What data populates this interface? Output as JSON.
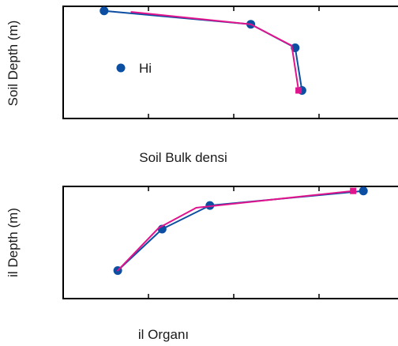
{
  "colors": {
    "observed": "#0b4ea2",
    "modeled": "#e0148c",
    "axis": "#000000"
  },
  "chart_data": [
    {
      "type": "line",
      "title": "",
      "xlabel": "Soil Bulk densi",
      "ylabel": "Soil Depth (m)",
      "grid": false,
      "legend": {
        "position": "left-middle",
        "entries": [
          {
            "label": "Hi",
            "series": "observed"
          }
        ]
      },
      "xlim": [
        0,
        1
      ],
      "ylim": [
        0,
        1
      ],
      "series": [
        {
          "key": "observed",
          "name": "Hi",
          "marker": "circle",
          "points": [
            {
              "x": 0.12,
              "y": 0.96
            },
            {
              "x": 0.55,
              "y": 0.84
            },
            {
              "x": 0.68,
              "y": 0.63
            },
            {
              "x": 0.7,
              "y": 0.25
            }
          ]
        },
        {
          "key": "modeled",
          "marker": "square-end",
          "points": [
            {
              "x": 0.2,
              "y": 0.95
            },
            {
              "x": 0.55,
              "y": 0.84
            },
            {
              "x": 0.67,
              "y": 0.65
            },
            {
              "x": 0.69,
              "y": 0.25
            }
          ]
        }
      ]
    },
    {
      "type": "line",
      "title": "",
      "xlabel": "il Organı",
      "ylabel": "il Depth (m)",
      "grid": false,
      "xlim": [
        0,
        1
      ],
      "ylim": [
        0,
        1
      ],
      "series": [
        {
          "key": "observed",
          "marker": "circle",
          "points": [
            {
              "x": 0.16,
              "y": 0.25
            },
            {
              "x": 0.29,
              "y": 0.62
            },
            {
              "x": 0.43,
              "y": 0.83
            },
            {
              "x": 0.88,
              "y": 0.96
            }
          ]
        },
        {
          "key": "modeled",
          "marker": "square-end",
          "points": [
            {
              "x": 0.16,
              "y": 0.25
            },
            {
              "x": 0.28,
              "y": 0.63
            },
            {
              "x": 0.39,
              "y": 0.81
            },
            {
              "x": 0.85,
              "y": 0.96
            }
          ]
        }
      ]
    }
  ]
}
